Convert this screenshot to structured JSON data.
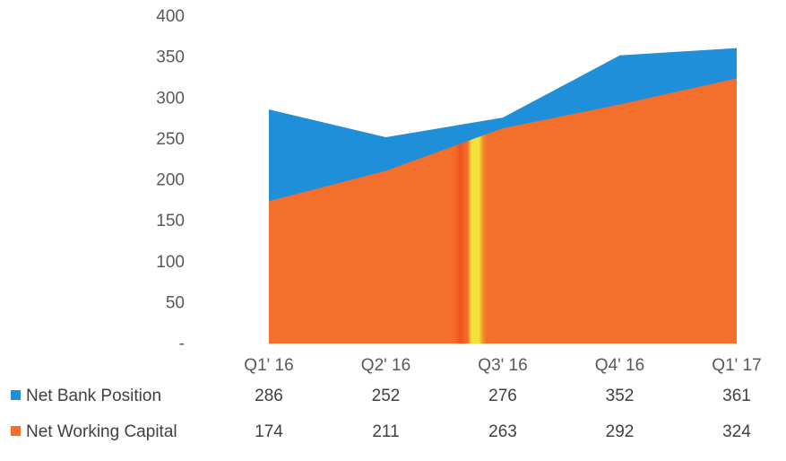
{
  "chart_data": {
    "type": "area",
    "stacked": false,
    "categories": [
      "Q1' 16",
      "Q2' 16",
      "Q3' 16",
      "Q4' 16",
      "Q1' 17"
    ],
    "series": [
      {
        "name": "Net Bank Position",
        "values": [
          286,
          252,
          276,
          352,
          361
        ],
        "color": "#1f8fd9"
      },
      {
        "name": "Net Working Capital",
        "values": [
          174,
          211,
          263,
          292,
          324
        ],
        "color": "#f36f2b"
      }
    ],
    "ylim": [
      0,
      400
    ],
    "yticks": [
      0,
      50,
      100,
      150,
      200,
      250,
      300,
      350,
      400
    ],
    "ytick_labels": [
      "-",
      "50",
      "100",
      "150",
      "200",
      "250",
      "300",
      "350",
      "400"
    ],
    "grid": false,
    "legend": "data-table-below",
    "data_table": true
  }
}
